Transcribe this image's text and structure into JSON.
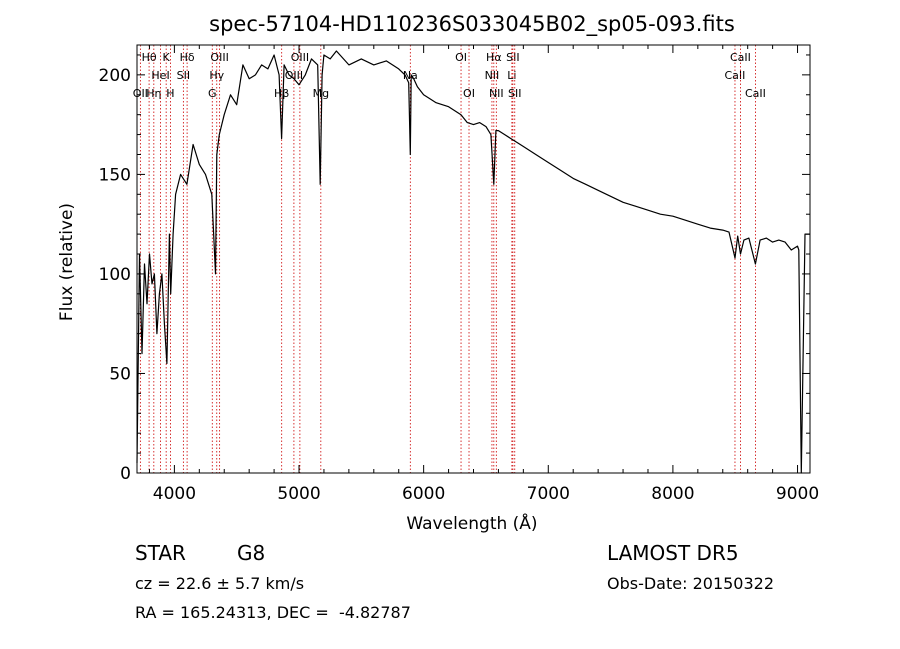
{
  "chart_data": {
    "type": "line",
    "title": "spec-57104-HD110236S033045B02_sp05-093.fits",
    "xlabel": "Wavelength (Å)",
    "ylabel": "Flux (relative)",
    "xlim": [
      3700,
      9100
    ],
    "ylim": [
      0,
      215
    ],
    "xticks": [
      4000,
      5000,
      6000,
      7000,
      8000,
      9000
    ],
    "yticks": [
      0,
      50,
      100,
      150,
      200
    ],
    "x_tick_labels": [
      "4000",
      "5000",
      "6000",
      "7000",
      "8000",
      "9000"
    ],
    "y_tick_labels": [
      "0",
      "50",
      "100",
      "150",
      "200"
    ],
    "grid": false,
    "line_color": "#000000",
    "marker_color": "#cc0000",
    "series": [
      {
        "x": [
          3700,
          3720,
          3740,
          3760,
          3780,
          3800,
          3820,
          3840,
          3860,
          3880,
          3900,
          3920,
          3940,
          3960,
          3970,
          3990,
          4010,
          4050,
          4100,
          4150,
          4200,
          4250,
          4300,
          4330,
          4340,
          4360,
          4400,
          4450,
          4500,
          4550,
          4600,
          4650,
          4700,
          4750,
          4800,
          4840,
          4860,
          4880,
          4920,
          4960,
          5000,
          5050,
          5100,
          5150,
          5170,
          5185,
          5200,
          5250,
          5300,
          5400,
          5500,
          5600,
          5700,
          5800,
          5850,
          5880,
          5893,
          5900,
          5920,
          5950,
          6000,
          6050,
          6100,
          6150,
          6200,
          6250,
          6300,
          6350,
          6400,
          6450,
          6500,
          6540,
          6563,
          6580,
          6600,
          6650,
          6700,
          6750,
          6800,
          6900,
          7000,
          7100,
          7200,
          7300,
          7400,
          7500,
          7600,
          7700,
          7800,
          7900,
          8000,
          8100,
          8200,
          8300,
          8400,
          8450,
          8498,
          8520,
          8542,
          8570,
          8610,
          8662,
          8700,
          8750,
          8800,
          8850,
          8900,
          8950,
          9000,
          9010,
          9030,
          9060,
          9100
        ],
        "y": [
          5,
          110,
          60,
          105,
          85,
          110,
          95,
          100,
          70,
          90,
          100,
          75,
          55,
          120,
          90,
          120,
          140,
          150,
          145,
          165,
          155,
          150,
          140,
          100,
          160,
          170,
          180,
          190,
          185,
          205,
          198,
          200,
          205,
          203,
          210,
          200,
          168,
          205,
          200,
          198,
          195,
          200,
          208,
          205,
          145,
          200,
          210,
          208,
          212,
          205,
          208,
          205,
          207,
          203,
          200,
          196,
          160,
          200,
          198,
          194,
          190,
          188,
          186,
          185,
          184,
          182,
          180,
          176,
          175,
          176,
          174,
          170,
          145,
          172,
          172,
          170,
          168,
          166,
          164,
          160,
          156,
          152,
          148,
          145,
          142,
          139,
          136,
          134,
          132,
          130,
          129,
          127,
          125,
          123,
          122,
          121,
          108,
          119,
          110,
          117,
          118,
          105,
          117,
          118,
          116,
          117,
          116,
          112,
          114,
          112,
          0,
          120,
          120
        ]
      }
    ],
    "line_markers": [
      {
        "wavelength": 3727,
        "label": "OII",
        "row": 2
      },
      {
        "wavelength": 3797,
        "label": "Hθ",
        "row": 0
      },
      {
        "wavelength": 3835,
        "label": "Hη",
        "row": 2
      },
      {
        "wavelength": 3889,
        "label": "HeI",
        "row": 1
      },
      {
        "wavelength": 3934,
        "label": "K",
        "row": 0
      },
      {
        "wavelength": 3968,
        "label": "H",
        "row": 2
      },
      {
        "wavelength": 4072,
        "label": "SII",
        "row": 1
      },
      {
        "wavelength": 4102,
        "label": "Hδ",
        "row": 0
      },
      {
        "wavelength": 4304,
        "label": "G",
        "row": 2
      },
      {
        "wavelength": 4340,
        "label": "Hγ",
        "row": 1
      },
      {
        "wavelength": 4363,
        "label": "OIII",
        "row": 0
      },
      {
        "wavelength": 4861,
        "label": "Hβ",
        "row": 2
      },
      {
        "wavelength": 4959,
        "label": "OIII",
        "row": 1
      },
      {
        "wavelength": 5007,
        "label": "OIII",
        "row": 0
      },
      {
        "wavelength": 5175,
        "label": "Mg",
        "row": 2
      },
      {
        "wavelength": 5893,
        "label": "Na",
        "row": 1
      },
      {
        "wavelength": 6300,
        "label": "OI",
        "row": 0
      },
      {
        "wavelength": 6364,
        "label": "OI",
        "row": 2
      },
      {
        "wavelength": 6548,
        "label": "NII",
        "row": 1
      },
      {
        "wavelength": 6563,
        "label": "Hα",
        "row": 0
      },
      {
        "wavelength": 6583,
        "label": "NII",
        "row": 2
      },
      {
        "wavelength": 6708,
        "label": "Li",
        "row": 1
      },
      {
        "wavelength": 6716,
        "label": "SII",
        "row": 0
      },
      {
        "wavelength": 6731,
        "label": "SII",
        "row": 2
      },
      {
        "wavelength": 8498,
        "label": "CaII",
        "row": 1
      },
      {
        "wavelength": 8542,
        "label": "CaII",
        "row": 0
      },
      {
        "wavelength": 8662,
        "label": "CaII",
        "row": 2
      }
    ]
  },
  "info": {
    "object_class": "STAR",
    "subclass": "G8",
    "survey": "LAMOST DR5",
    "redshift": "cz = 22.6 ± 5.7 km/s",
    "obs_date": "Obs-Date: 20150322",
    "coords": "RA = 165.24313, DEC =  -4.82787"
  }
}
